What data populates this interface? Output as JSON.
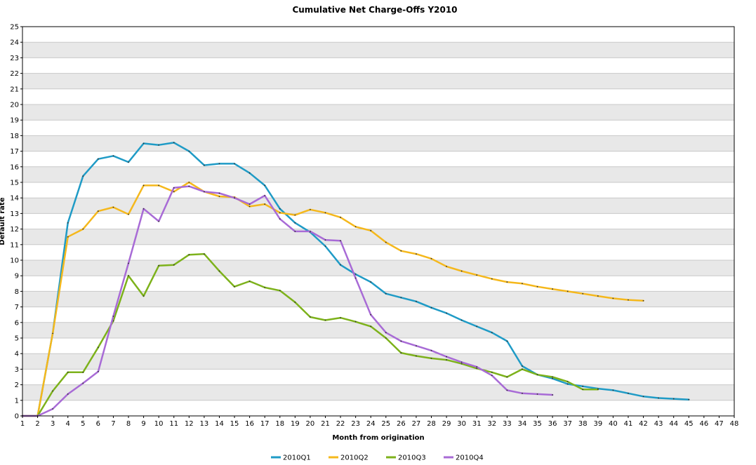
{
  "chart_data": {
    "type": "line",
    "title": "Cumulative Net Charge-Offs  Y2010",
    "xlabel": "Month from origination",
    "ylabel": "Default rate",
    "xlim": [
      1,
      48
    ],
    "ylim": [
      0,
      25
    ],
    "x_ticks": [
      1,
      2,
      3,
      4,
      5,
      6,
      7,
      8,
      9,
      10,
      11,
      12,
      13,
      14,
      15,
      16,
      17,
      18,
      19,
      20,
      21,
      22,
      23,
      24,
      25,
      26,
      27,
      28,
      29,
      30,
      31,
      32,
      33,
      34,
      35,
      36,
      37,
      38,
      39,
      40,
      41,
      42,
      43,
      44,
      45,
      46,
      47,
      48
    ],
    "y_ticks": [
      0,
      1,
      2,
      3,
      4,
      5,
      6,
      7,
      8,
      9,
      10,
      11,
      12,
      13,
      14,
      15,
      16,
      17,
      18,
      19,
      20,
      21,
      22,
      23,
      24,
      25
    ],
    "grid": "horizontal alternating bands",
    "legend_position": "bottom",
    "series": [
      {
        "name": "2010Q1",
        "color": "#1f9bc6",
        "x": [
          1,
          2,
          3,
          4,
          5,
          6,
          7,
          8,
          9,
          10,
          11,
          12,
          13,
          14,
          15,
          16,
          17,
          18,
          19,
          20,
          21,
          22,
          23,
          24,
          25,
          26,
          27,
          28,
          29,
          30,
          31,
          32,
          33,
          34,
          35,
          36,
          37,
          38,
          39,
          40,
          41,
          42,
          43,
          44,
          45
        ],
        "values": [
          0,
          0,
          5.3,
          12.4,
          15.4,
          16.5,
          16.7,
          16.3,
          17.5,
          17.4,
          17.55,
          17.0,
          16.1,
          16.2,
          16.2,
          15.6,
          14.8,
          13.3,
          12.4,
          11.8,
          10.9,
          9.7,
          9.1,
          8.6,
          7.85,
          7.6,
          7.35,
          6.95,
          6.6,
          6.15,
          5.75,
          5.35,
          4.8,
          3.2,
          2.65,
          2.4,
          2.05,
          1.9,
          1.75,
          1.65,
          1.45,
          1.25,
          1.15,
          1.1,
          1.05
        ]
      },
      {
        "name": "2010Q2",
        "color": "#f5b81c",
        "x": [
          1,
          2,
          3,
          4,
          5,
          6,
          7,
          8,
          9,
          10,
          11,
          12,
          13,
          14,
          15,
          16,
          17,
          18,
          19,
          20,
          21,
          22,
          23,
          24,
          25,
          26,
          27,
          28,
          29,
          30,
          31,
          32,
          33,
          34,
          35,
          36,
          37,
          38,
          39,
          40,
          41,
          42
        ],
        "values": [
          0,
          0,
          5.3,
          11.5,
          12.0,
          13.15,
          13.4,
          12.95,
          14.8,
          14.8,
          14.4,
          15.0,
          14.4,
          14.1,
          14.05,
          13.45,
          13.6,
          13.05,
          12.9,
          13.25,
          13.05,
          12.75,
          12.15,
          11.9,
          11.15,
          10.6,
          10.4,
          10.1,
          9.6,
          9.3,
          9.05,
          8.8,
          8.6,
          8.5,
          8.3,
          8.15,
          8.0,
          7.85,
          7.7,
          7.55,
          7.45,
          7.4
        ]
      },
      {
        "name": "2010Q3",
        "color": "#7db21b",
        "x": [
          2,
          3,
          4,
          5,
          6,
          7,
          8,
          9,
          10,
          11,
          12,
          13,
          14,
          15,
          16,
          17,
          18,
          19,
          20,
          21,
          22,
          23,
          24,
          25,
          26,
          27,
          28,
          29,
          30,
          31,
          32,
          33,
          34,
          35,
          36,
          37,
          38,
          39
        ],
        "values": [
          0,
          1.6,
          2.8,
          2.8,
          4.4,
          6.1,
          9.0,
          7.7,
          9.65,
          9.7,
          10.35,
          10.4,
          9.3,
          8.3,
          8.65,
          8.25,
          8.05,
          7.3,
          6.35,
          6.15,
          6.3,
          6.05,
          5.75,
          5.0,
          4.05,
          3.85,
          3.7,
          3.6,
          3.35,
          3.05,
          2.8,
          2.5,
          3.0,
          2.65,
          2.5,
          2.2,
          1.7,
          1.7
        ]
      },
      {
        "name": "2010Q4",
        "color": "#a86bd6",
        "x": [
          1,
          2,
          3,
          4,
          5,
          6,
          7,
          8,
          9,
          10,
          11,
          12,
          13,
          14,
          15,
          16,
          17,
          18,
          19,
          20,
          21,
          22,
          23,
          24,
          25,
          26,
          27,
          28,
          29,
          30,
          31,
          32,
          33,
          34,
          35,
          36
        ],
        "values": [
          0,
          0,
          0.45,
          1.4,
          2.1,
          2.85,
          6.4,
          9.8,
          13.3,
          12.5,
          14.65,
          14.75,
          14.4,
          14.3,
          14.0,
          13.6,
          14.15,
          12.65,
          11.85,
          11.85,
          11.3,
          11.25,
          8.85,
          6.5,
          5.35,
          4.8,
          4.5,
          4.2,
          3.8,
          3.45,
          3.15,
          2.6,
          1.65,
          1.45,
          1.4,
          1.35
        ]
      }
    ]
  }
}
